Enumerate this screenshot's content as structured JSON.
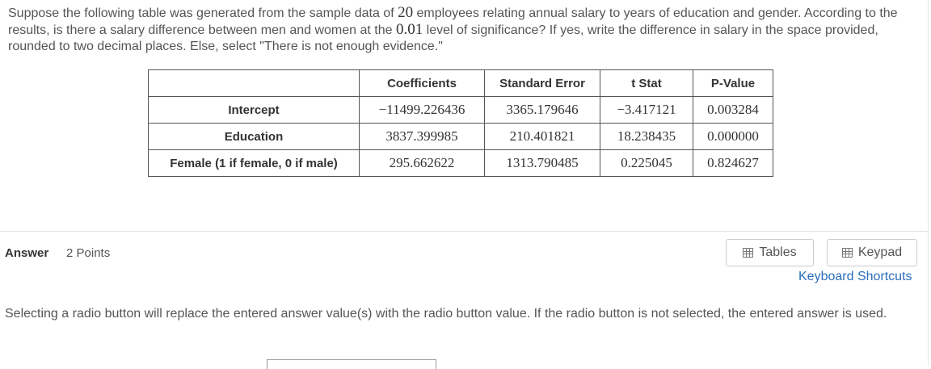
{
  "question": {
    "text_before": "Suppose the following table was generated from the sample data of ",
    "n": "20",
    "text_middle": " employees relating annual salary to years of education and gender. According to the results, is there a salary difference between men and women at the ",
    "alpha": "0.01",
    "text_after": " level of significance? If yes, write the difference in salary in the space provided, rounded to two decimal places. Else, select \"There is not enough evidence.\""
  },
  "table": {
    "headers": [
      "",
      "Coefficients",
      "Standard Error",
      "t Stat",
      "P-Value"
    ],
    "rows": [
      {
        "label": "Intercept",
        "values": [
          "−11499.226436",
          "3365.179646",
          "−3.417121",
          "0.003284"
        ]
      },
      {
        "label": "Education",
        "values": [
          "3837.399985",
          "210.401821",
          "18.238435",
          "0.000000"
        ]
      },
      {
        "label": "Female (1 if female, 0 if male)",
        "values": [
          "295.662622",
          "1313.790485",
          "0.225045",
          "0.824627"
        ]
      }
    ]
  },
  "answer": {
    "label": "Answer",
    "points": "2 Points",
    "tables_button": "Tables",
    "keypad_button": "Keypad",
    "shortcuts_link": "Keyboard Shortcuts",
    "note": "Selecting a radio button will replace the entered answer value(s) with the radio button value. If the radio button is not selected, the entered answer is used."
  },
  "icons": {
    "tables": "table-grid-icon",
    "keypad": "keypad-icon"
  }
}
